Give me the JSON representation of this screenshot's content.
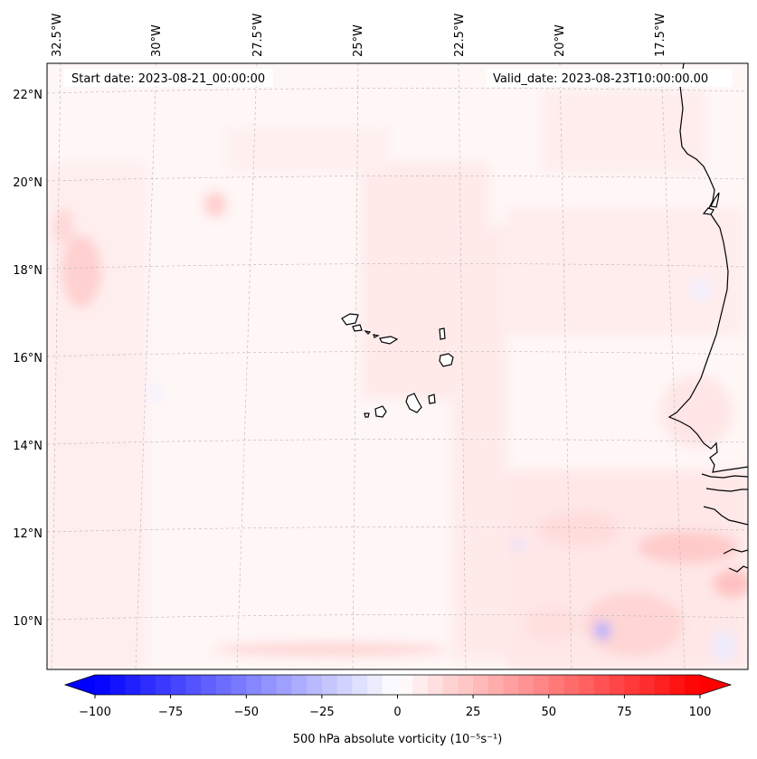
{
  "map": {
    "type": "contourf",
    "variable": "500 hPa absolute vorticity",
    "start_label": "Start date: 2023-08-21_00:00:00",
    "valid_label": "Valid_date: 2023-08-23T10:00:00.00",
    "lon_ticks": [
      "32.5°W",
      "30°W",
      "27.5°W",
      "25°W",
      "22.5°W",
      "20°W",
      "17.5°W"
    ],
    "lat_ticks": [
      "22°N",
      "20°N",
      "18°N",
      "16°N",
      "14°N",
      "12°N",
      "10°N"
    ],
    "extent": {
      "lon_min": -32.9,
      "lon_max": -15.3,
      "lat_min": 8.9,
      "lat_max": 22.8
    },
    "features": [
      {
        "name": "Cape Verde Islands"
      },
      {
        "name": "West African coastline (Mauritania, Senegal, Gambia, Guinea-Bissau)"
      }
    ]
  },
  "colorbar": {
    "label": "500 hPa absolute vorticity (10⁻⁵s⁻¹)",
    "ticks": [
      "−100",
      "−75",
      "−50",
      "−25",
      "0",
      "25",
      "50",
      "75",
      "100"
    ],
    "vmin": -100,
    "vmax": 100,
    "step": 5,
    "extend": "both",
    "cmap": "bwr",
    "color_min": "#0000ff",
    "color_mid": "#ffffff",
    "color_max": "#ff0000"
  }
}
